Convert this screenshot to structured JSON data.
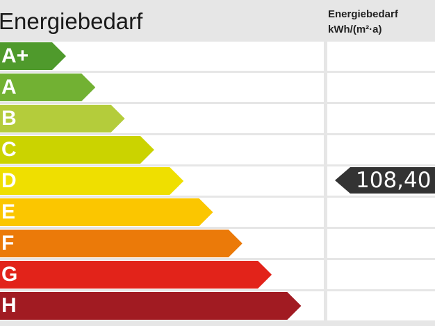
{
  "header": {
    "title": "Energiebedarf",
    "unit_line1": "Energiebedarf",
    "unit_line2": "kWh/(m²·a)"
  },
  "classes": [
    {
      "label": "A+",
      "color": "#4f9a2c"
    },
    {
      "label": "A",
      "color": "#72b133"
    },
    {
      "label": "B",
      "color": "#b4cc3b"
    },
    {
      "label": "C",
      "color": "#cbd300"
    },
    {
      "label": "D",
      "color": "#efdf00"
    },
    {
      "label": "E",
      "color": "#fbc600"
    },
    {
      "label": "F",
      "color": "#eb7a09"
    },
    {
      "label": "G",
      "color": "#e2231a"
    },
    {
      "label": "H",
      "color": "#a11b22"
    }
  ],
  "indicator": {
    "value": "108,40",
    "class": "D",
    "color": "#333333"
  }
}
